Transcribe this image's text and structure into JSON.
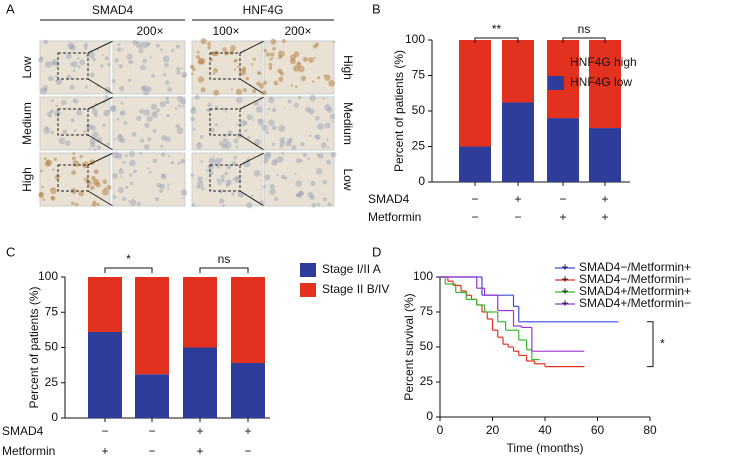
{
  "panel_a": {
    "panel": "A",
    "columns": [
      "SMAD4",
      "HNF4G"
    ],
    "magnifications": [
      "200×",
      "100×",
      "200×"
    ],
    "row_labels_left": [
      "Low",
      "Medium",
      "High"
    ],
    "row_labels_right": [
      "High",
      "Medium",
      "Low"
    ]
  },
  "chart_data": [
    {
      "panel": "B",
      "type": "bar",
      "stacked": true,
      "legend_reversed": true,
      "ylabel": "Percent of patients (%)",
      "ylim": [
        0,
        100
      ],
      "yticks": [
        0,
        25,
        50,
        75,
        100
      ],
      "conditions": [
        {
          "name": "SMAD4",
          "values": [
            "−",
            "+",
            "−",
            "+"
          ]
        },
        {
          "name": "Metformin",
          "values": [
            "−",
            "−",
            "+",
            "+"
          ]
        }
      ],
      "annotations": [
        "**",
        "ns"
      ],
      "series": [
        {
          "name": "HNF4G low",
          "color": "#2e3d9a",
          "values": [
            25,
            56,
            45,
            38
          ]
        },
        {
          "name": "HNF4G high",
          "color": "#e2321f",
          "values": [
            75,
            44,
            55,
            62
          ]
        }
      ]
    },
    {
      "panel": "C",
      "type": "bar",
      "stacked": true,
      "legend_reversed": false,
      "ylabel": "Percent of patients (%)",
      "ylim": [
        0,
        100
      ],
      "yticks": [
        0,
        25,
        50,
        75,
        100
      ],
      "conditions": [
        {
          "name": "SMAD4",
          "values": [
            "−",
            "−",
            "+",
            "+"
          ]
        },
        {
          "name": "Metformin",
          "values": [
            "+",
            "−",
            "+",
            "−"
          ]
        }
      ],
      "annotations": [
        "*",
        "ns"
      ],
      "series": [
        {
          "name": "Stage I/II A",
          "color": "#2e3d9a",
          "values": [
            61,
            31,
            50,
            39
          ]
        },
        {
          "name": "Stage II B/IV",
          "color": "#e2321f",
          "values": [
            39,
            69,
            50,
            61
          ]
        }
      ]
    },
    {
      "panel": "D",
      "type": "step",
      "xlabel": "Time (months)",
      "ylabel": "Percent survival (%)",
      "xlim": [
        0,
        80
      ],
      "xticks": [
        0,
        20,
        40,
        60,
        80
      ],
      "ylim": [
        0,
        100
      ],
      "yticks": [
        0,
        25,
        50,
        75,
        100
      ],
      "annotations": [
        "*"
      ],
      "series": [
        {
          "name": "SMAD4−/Metformin+",
          "color": "#3a4fd8",
          "x": [
            0,
            16,
            28,
            30,
            68
          ],
          "values": [
            100,
            87,
            79,
            68,
            68
          ]
        },
        {
          "name": "SMAD4−/Metformin−",
          "color": "#e2321f",
          "x": [
            0,
            3,
            5,
            8,
            10,
            12,
            14,
            16,
            18,
            20,
            22,
            24,
            26,
            28,
            30,
            33,
            36,
            40,
            55
          ],
          "values": [
            100,
            97,
            94,
            90,
            87,
            84,
            80,
            75,
            70,
            62,
            57,
            52,
            50,
            47,
            44,
            40,
            38,
            36,
            36
          ]
        },
        {
          "name": "SMAD4+/Metformin+",
          "color": "#35b82a",
          "x": [
            0,
            2,
            6,
            10,
            14,
            17,
            22,
            25,
            30,
            33,
            35,
            38
          ],
          "values": [
            100,
            95,
            89,
            84,
            80,
            75,
            68,
            62,
            55,
            48,
            41,
            41
          ]
        },
        {
          "name": "SMAD4+/Metformin−",
          "color": "#9b36c9",
          "x": [
            0,
            14,
            17,
            22,
            28,
            31,
            35,
            55
          ],
          "values": [
            100,
            92,
            87,
            76,
            65,
            64,
            47,
            47
          ]
        }
      ]
    }
  ]
}
